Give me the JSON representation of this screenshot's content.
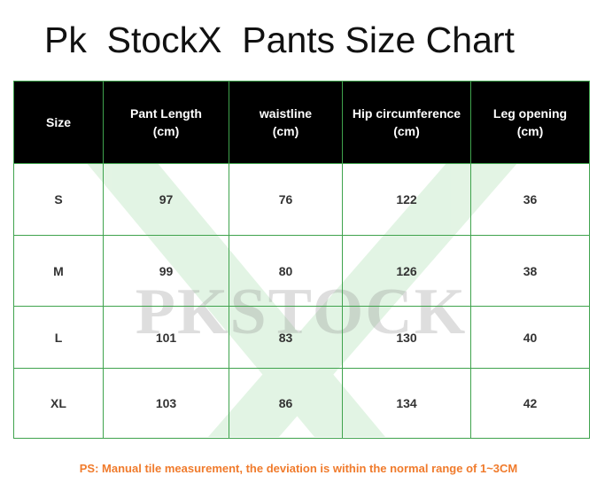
{
  "page": {
    "title": "Pk  StockX  Pants Size Chart",
    "note": "PS: Manual tile measurement, the deviation is within the normal range of 1~3CM",
    "watermark_text": "PKSTOCK",
    "colors": {
      "border": "#3fa34d",
      "header_bg": "#000000",
      "note": "#f07b2c"
    }
  },
  "table": {
    "headers": [
      {
        "line1": "Size",
        "line2": ""
      },
      {
        "line1": "Pant Length",
        "line2": "(cm)"
      },
      {
        "line1": "waistline",
        "line2": "(cm)"
      },
      {
        "line1": "Hip circumference",
        "line2": "(cm)"
      },
      {
        "line1": "Leg opening",
        "line2": "(cm)"
      }
    ],
    "rows": [
      [
        "S",
        "97",
        "76",
        "122",
        "36"
      ],
      [
        "M",
        "99",
        "80",
        "126",
        "38"
      ],
      [
        "L",
        "101",
        "83",
        "130",
        "40"
      ],
      [
        "XL",
        "103",
        "86",
        "134",
        "42"
      ]
    ]
  }
}
